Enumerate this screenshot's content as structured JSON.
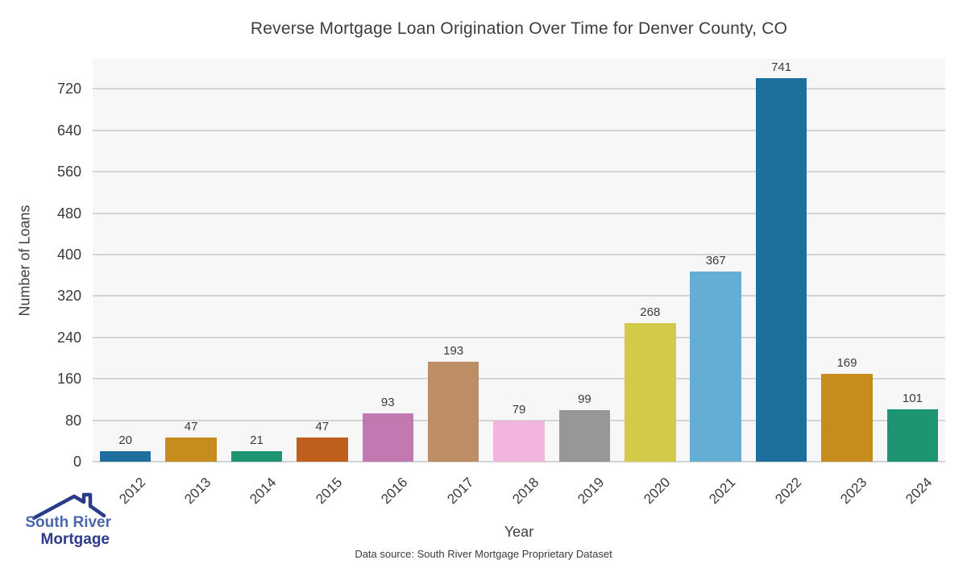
{
  "chart_data": {
    "type": "bar",
    "title": "Reverse Mortgage Loan Origination Over Time for Denver County, CO",
    "xlabel": "Year",
    "ylabel": "Number of Loans",
    "categories": [
      "2012",
      "2013",
      "2014",
      "2015",
      "2016",
      "2017",
      "2018",
      "2019",
      "2020",
      "2021",
      "2022",
      "2023",
      "2024"
    ],
    "values": [
      20,
      47,
      21,
      47,
      93,
      193,
      79,
      99,
      268,
      367,
      741,
      169,
      101
    ],
    "bar_colors": [
      "#1e6f9e",
      "#c78c1e",
      "#1e9572",
      "#bf5e1d",
      "#c279b2",
      "#bd8d66",
      "#f2b5de",
      "#979797",
      "#d3ca49",
      "#64aed6",
      "#1e6f9e",
      "#c78c1e",
      "#1e9572"
    ],
    "yticks": [
      0,
      80,
      160,
      240,
      320,
      400,
      480,
      560,
      640,
      720
    ],
    "ylim": [
      0,
      778
    ],
    "grid": true,
    "legend_position": "none",
    "plot_background": "#f7f7f7",
    "grid_color": "#d4d4d4"
  },
  "footer": {
    "source": "Data source: South River Mortgage Proprietary Dataset"
  },
  "logo": {
    "line1": "South River",
    "line2": "Mortgage",
    "line1_color": "#4b67ae",
    "line2_color": "#2c3a8a",
    "roof_color": "#2c3a8a"
  }
}
